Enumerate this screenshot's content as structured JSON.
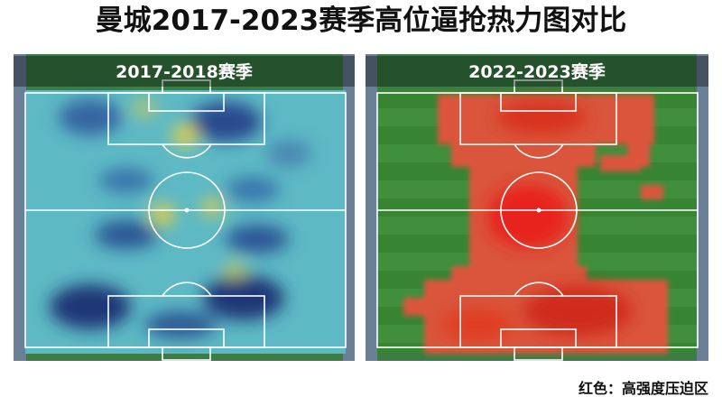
{
  "title": "曼城2017-2023赛季高位逼抢热力图对比",
  "panels": [
    {
      "title": "2017-2018赛季"
    },
    {
      "title": "2022-2023赛季"
    }
  ],
  "note": "红色：高强度压迫区"
}
